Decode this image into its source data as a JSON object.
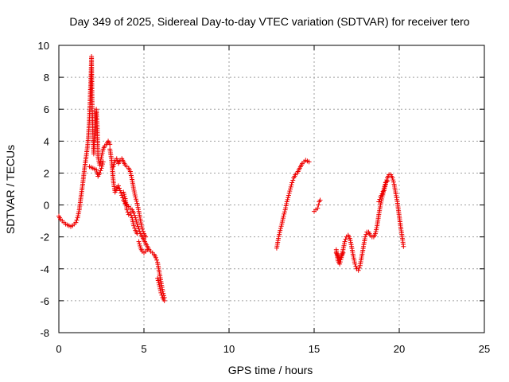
{
  "chart_data": {
    "type": "scatter",
    "title": "Day 349 of 2025, Sidereal Day-to-day VTEC variation (SDTVAR) for receiver tero",
    "xlabel": "GPS time / hours",
    "ylabel": "SDTVAR / TECUs",
    "xlim": [
      0,
      25
    ],
    "ylim": [
      -8,
      10
    ],
    "xticks": [
      0,
      5,
      10,
      15,
      20,
      25
    ],
    "yticks": [
      -8,
      -6,
      -4,
      -2,
      0,
      2,
      4,
      6,
      8,
      10
    ],
    "xtick_labels": [
      "0",
      "5",
      "10",
      "15",
      "20",
      "25"
    ],
    "ytick_labels": [
      "-8",
      "-6",
      "-4",
      "-2",
      "0",
      "2",
      "4",
      "6",
      "8",
      "10"
    ],
    "grid": true,
    "marker": "+",
    "color": "#ee0000",
    "series": [
      {
        "name": "SDTVAR",
        "segments": [
          [
            [
              0.0,
              -0.7
            ],
            [
              0.1,
              -0.9
            ],
            [
              0.2,
              -1.0
            ],
            [
              0.3,
              -1.1
            ],
            [
              0.4,
              -1.2
            ],
            [
              0.5,
              -1.25
            ],
            [
              0.6,
              -1.3
            ],
            [
              0.7,
              -1.35
            ],
            [
              0.8,
              -1.3
            ],
            [
              0.9,
              -1.2
            ],
            [
              1.0,
              -1.1
            ],
            [
              1.1,
              -0.8
            ],
            [
              1.2,
              -0.3
            ],
            [
              1.3,
              0.5
            ],
            [
              1.4,
              1.3
            ],
            [
              1.5,
              2.2
            ],
            [
              1.6,
              3.0
            ],
            [
              1.7,
              3.8
            ],
            [
              1.75,
              4.5
            ],
            [
              1.8,
              5.5
            ],
            [
              1.85,
              7.0
            ],
            [
              1.9,
              8.5
            ],
            [
              1.92,
              9.3
            ],
            [
              1.95,
              6.5
            ],
            [
              2.0,
              4.5
            ],
            [
              2.05,
              3.2
            ],
            [
              2.1,
              4.5
            ],
            [
              2.15,
              5.5
            ],
            [
              2.2,
              6.0
            ],
            [
              2.25,
              5.0
            ],
            [
              2.3,
              3.0
            ],
            [
              2.4,
              2.5
            ],
            [
              2.5,
              3.0
            ],
            [
              2.6,
              3.5
            ],
            [
              2.7,
              3.7
            ],
            [
              2.8,
              3.8
            ],
            [
              2.9,
              4.0
            ],
            [
              3.0,
              3.8
            ]
          ],
          [
            [
              1.8,
              2.4
            ],
            [
              2.0,
              2.3
            ],
            [
              2.2,
              2.2
            ],
            [
              2.3,
              1.8
            ],
            [
              2.4,
              2.0
            ],
            [
              2.5,
              2.3
            ],
            [
              2.6,
              2.7
            ]
          ],
          [
            [
              3.0,
              3.5
            ],
            [
              3.1,
              2.8
            ],
            [
              3.2,
              1.5
            ],
            [
              3.3,
              0.8
            ],
            [
              3.4,
              1.0
            ],
            [
              3.5,
              1.2
            ],
            [
              3.6,
              0.9
            ],
            [
              3.7,
              0.6
            ],
            [
              3.8,
              0.3
            ],
            [
              3.9,
              0.1
            ],
            [
              4.0,
              0.0
            ],
            [
              4.1,
              -0.1
            ],
            [
              4.2,
              -0.2
            ],
            [
              4.3,
              -0.3
            ],
            [
              4.4,
              -0.5
            ],
            [
              4.5,
              -0.8
            ],
            [
              4.6,
              -1.2
            ],
            [
              4.7,
              -1.5
            ],
            [
              4.8,
              -1.8
            ],
            [
              4.9,
              -2.0
            ],
            [
              5.0,
              -2.2
            ],
            [
              5.1,
              -2.4
            ],
            [
              5.2,
              -2.6
            ],
            [
              5.3,
              -2.8
            ],
            [
              5.4,
              -2.9
            ],
            [
              5.5,
              -3.0
            ],
            [
              5.6,
              -3.1
            ],
            [
              5.7,
              -3.3
            ],
            [
              5.8,
              -3.6
            ],
            [
              5.9,
              -4.2
            ],
            [
              6.0,
              -4.8
            ],
            [
              6.1,
              -5.4
            ],
            [
              6.2,
              -5.8
            ]
          ],
          [
            [
              3.2,
              2.4
            ],
            [
              3.3,
              2.8
            ],
            [
              3.4,
              2.9
            ],
            [
              3.5,
              2.6
            ],
            [
              3.6,
              2.8
            ],
            [
              3.7,
              2.9
            ],
            [
              3.8,
              2.7
            ],
            [
              3.9,
              2.5
            ],
            [
              4.0,
              2.4
            ],
            [
              4.1,
              2.3
            ],
            [
              4.2,
              2.1
            ],
            [
              4.3,
              1.6
            ],
            [
              4.4,
              1.0
            ],
            [
              4.5,
              0.5
            ],
            [
              4.6,
              0.1
            ],
            [
              4.7,
              -0.4
            ],
            [
              4.8,
              -1.0
            ],
            [
              4.9,
              -1.5
            ],
            [
              5.0,
              -1.8
            ],
            [
              5.1,
              -2.0
            ]
          ],
          [
            [
              3.8,
              0.8
            ],
            [
              3.9,
              0.4
            ],
            [
              4.0,
              -0.3
            ],
            [
              4.1,
              -0.6
            ],
            [
              4.2,
              -0.5
            ],
            [
              4.3,
              -0.8
            ],
            [
              4.4,
              -1.3
            ],
            [
              4.5,
              -1.6
            ],
            [
              4.6,
              -1.8
            ]
          ],
          [
            [
              4.7,
              -2.3
            ],
            [
              4.8,
              -2.7
            ],
            [
              4.9,
              -2.9
            ],
            [
              5.0,
              -3.0
            ],
            [
              5.1,
              -2.9
            ],
            [
              5.2,
              -2.8
            ]
          ],
          [
            [
              5.8,
              -4.6
            ],
            [
              5.9,
              -5.0
            ],
            [
              6.0,
              -5.5
            ],
            [
              6.1,
              -5.8
            ],
            [
              6.2,
              -6.0
            ]
          ],
          [
            [
              12.8,
              -2.7
            ],
            [
              12.9,
              -2.1
            ],
            [
              13.0,
              -1.6
            ],
            [
              13.1,
              -1.2
            ],
            [
              13.2,
              -0.7
            ],
            [
              13.3,
              -0.3
            ],
            [
              13.4,
              0.2
            ],
            [
              13.5,
              0.6
            ],
            [
              13.6,
              1.0
            ],
            [
              13.7,
              1.4
            ],
            [
              13.8,
              1.7
            ],
            [
              13.9,
              1.9
            ],
            [
              14.0,
              2.0
            ],
            [
              14.1,
              2.2
            ],
            [
              14.2,
              2.4
            ],
            [
              14.3,
              2.6
            ],
            [
              14.4,
              2.7
            ],
            [
              14.5,
              2.8
            ],
            [
              14.6,
              2.75
            ],
            [
              14.7,
              2.7
            ]
          ],
          [
            [
              15.0,
              -0.4
            ],
            [
              15.1,
              -0.3
            ],
            [
              15.2,
              -0.2
            ],
            [
              15.25,
              0.0
            ],
            [
              15.3,
              0.2
            ],
            [
              15.35,
              0.3
            ]
          ],
          [
            [
              16.3,
              -2.8
            ],
            [
              16.4,
              -3.5
            ],
            [
              16.5,
              -3.7
            ],
            [
              16.6,
              -3.3
            ],
            [
              16.7,
              -2.8
            ],
            [
              16.8,
              -2.3
            ],
            [
              16.9,
              -2.0
            ],
            [
              17.0,
              -1.9
            ],
            [
              17.1,
              -2.1
            ],
            [
              17.2,
              -2.6
            ],
            [
              17.3,
              -3.2
            ],
            [
              17.4,
              -3.7
            ],
            [
              17.5,
              -4.0
            ],
            [
              17.6,
              -4.1
            ],
            [
              17.7,
              -3.8
            ],
            [
              17.8,
              -3.2
            ],
            [
              17.9,
              -2.6
            ],
            [
              18.0,
              -2.0
            ],
            [
              18.1,
              -1.7
            ],
            [
              18.2,
              -1.7
            ],
            [
              18.3,
              -1.9
            ],
            [
              18.4,
              -2.0
            ],
            [
              18.5,
              -2.0
            ],
            [
              18.6,
              -1.8
            ],
            [
              18.7,
              -1.3
            ],
            [
              18.8,
              -0.6
            ],
            [
              18.9,
              0.0
            ],
            [
              19.0,
              0.5
            ],
            [
              19.1,
              0.9
            ],
            [
              19.2,
              1.3
            ],
            [
              19.3,
              1.7
            ],
            [
              19.4,
              1.9
            ],
            [
              19.5,
              1.9
            ],
            [
              19.6,
              1.7
            ],
            [
              19.7,
              1.3
            ],
            [
              19.8,
              0.7
            ],
            [
              19.9,
              0.1
            ],
            [
              20.0,
              -0.7
            ],
            [
              20.1,
              -1.5
            ],
            [
              20.2,
              -2.2
            ],
            [
              20.25,
              -2.6
            ]
          ],
          [
            [
              16.3,
              -3.0
            ],
            [
              16.4,
              -3.2
            ],
            [
              16.5,
              -3.4
            ],
            [
              16.6,
              -3.2
            ],
            [
              16.7,
              -3.0
            ]
          ],
          [
            [
              18.8,
              0.2
            ],
            [
              18.9,
              0.5
            ],
            [
              19.0,
              0.7
            ],
            [
              19.1,
              1.0
            ],
            [
              19.2,
              1.4
            ],
            [
              19.3,
              1.5
            ]
          ]
        ]
      }
    ]
  }
}
